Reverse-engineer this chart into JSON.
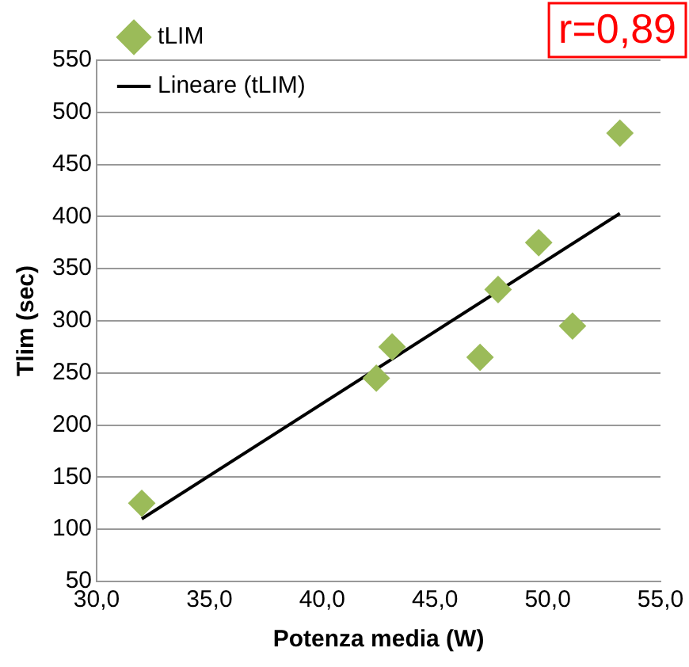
{
  "chart_data": {
    "type": "scatter",
    "xlabel": "Potenza media (W)",
    "ylabel": "Tlim (sec)",
    "xlim": [
      30,
      55
    ],
    "xticks": [
      {
        "value": 30,
        "label": "30,0"
      },
      {
        "value": 35,
        "label": "35,0"
      },
      {
        "value": 40,
        "label": "40,0"
      },
      {
        "value": 45,
        "label": "45,0"
      },
      {
        "value": 50,
        "label": "50,0"
      },
      {
        "value": 55,
        "label": "55,0"
      }
    ],
    "ylim": [
      50,
      550
    ],
    "yticks": [
      50,
      100,
      150,
      200,
      250,
      300,
      350,
      400,
      450,
      500,
      550
    ],
    "series": [
      {
        "name": "tLIM",
        "color": "#9bbb59",
        "marker": "diamond",
        "x": [
          32.0,
          42.4,
          43.1,
          47.0,
          47.8,
          49.6,
          51.1,
          53.2
        ],
        "values": [
          125,
          245,
          275,
          265,
          330,
          375,
          295,
          480
        ]
      },
      {
        "name": "Lineare (tLIM)",
        "type": "line",
        "color": "#000000",
        "marker": "none",
        "x": [
          32.0,
          53.2
        ],
        "values": [
          110,
          403
        ]
      }
    ],
    "annotations": [
      "r=0,89"
    ],
    "grid": "y",
    "legend": "top left"
  }
}
